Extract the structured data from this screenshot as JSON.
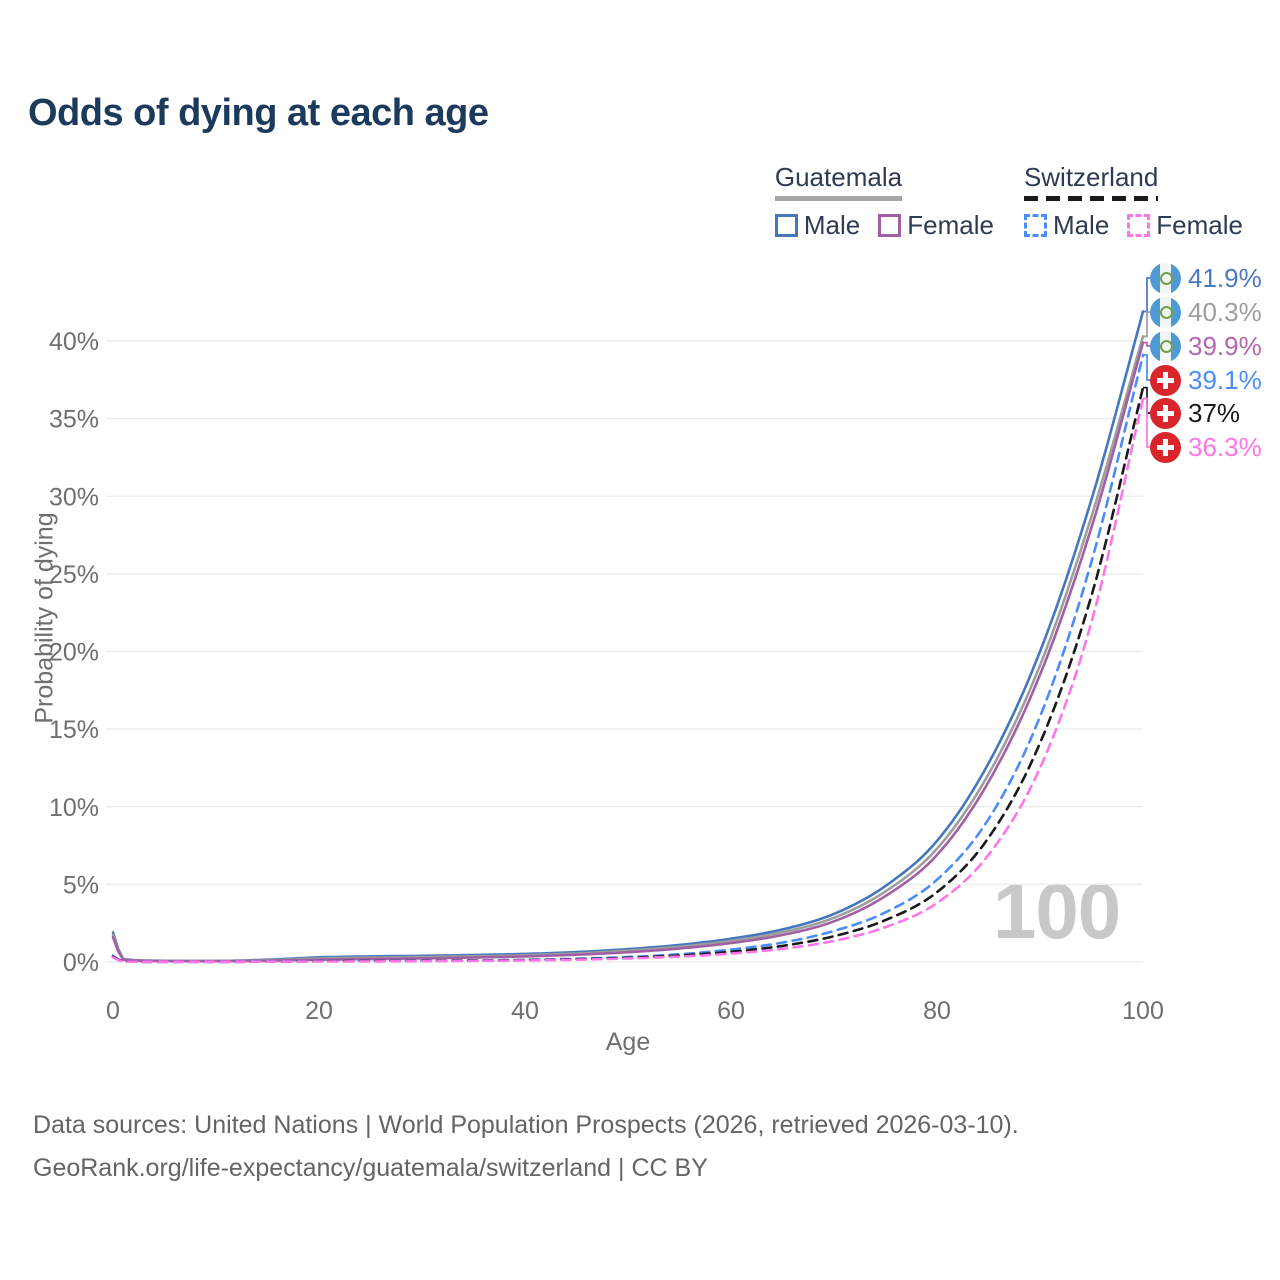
{
  "title": "Odds of dying at each age",
  "watermark": "100",
  "legend": {
    "groups": [
      {
        "country": "Guatemala",
        "line_style": "solid",
        "underline_color": "#a6a6a6",
        "items": [
          {
            "label": "Male",
            "color": "#4577bd"
          },
          {
            "label": "Female",
            "color": "#a25fa3"
          }
        ]
      },
      {
        "country": "Switzerland",
        "line_style": "dashed",
        "underline_color": "#1a1a1a",
        "items": [
          {
            "label": "Male",
            "color": "#4a8ef5"
          },
          {
            "label": "Female",
            "color": "#fb76e8"
          }
        ]
      }
    ]
  },
  "end_labels": [
    {
      "flag": "guatemala",
      "text": "41.9%",
      "value": 41.9,
      "color": "#4a79c2"
    },
    {
      "flag": "guatemala",
      "text": "40.3%",
      "value": 40.3,
      "color": "#9e9e9e"
    },
    {
      "flag": "guatemala",
      "text": "39.9%",
      "value": 39.9,
      "color": "#b365b0"
    },
    {
      "flag": "switzerland",
      "text": "39.1%",
      "value": 39.1,
      "color": "#4a8ef5"
    },
    {
      "flag": "switzerland",
      "text": "37%",
      "value": 37.0,
      "color": "#1a1a1a"
    },
    {
      "flag": "switzerland",
      "text": "36.3%",
      "value": 36.3,
      "color": "#fb76e8"
    }
  ],
  "footer": {
    "line1": "Data sources: United Nations | World Population Prospects (2026, retrieved 2026-03-10).",
    "line2": "GeoRank.org/life-expectancy/guatemala/switzerland | CC BY"
  },
  "chart_data": {
    "type": "line",
    "title": "Odds of dying at each age",
    "xlabel": "Age",
    "ylabel": "Probability of dying",
    "xlim": [
      0,
      100
    ],
    "ylim_percent": [
      0,
      44
    ],
    "grid": "horizontal",
    "legend_position": "top-right",
    "x_ticks": [
      0,
      20,
      40,
      60,
      80,
      100
    ],
    "y_tick_labels": [
      "0%",
      "5%",
      "10%",
      "15%",
      "20%",
      "25%",
      "30%",
      "35%",
      "40%"
    ],
    "y_tick_values": [
      0,
      5,
      10,
      15,
      20,
      25,
      30,
      35,
      40
    ],
    "ages": [
      0,
      1,
      5,
      10,
      15,
      20,
      25,
      30,
      35,
      40,
      45,
      50,
      55,
      60,
      65,
      70,
      75,
      80,
      85,
      90,
      95,
      100
    ],
    "unit": "percent probability of dying at each age",
    "series": [
      {
        "name": "Guatemala Male",
        "country": "Guatemala",
        "sex": "Male",
        "color": "#4577bd",
        "dash": false,
        "end_value": 41.9,
        "values": [
          1.9,
          0.18,
          0.08,
          0.07,
          0.15,
          0.3,
          0.36,
          0.4,
          0.45,
          0.52,
          0.64,
          0.83,
          1.1,
          1.5,
          2.1,
          3.1,
          4.9,
          7.8,
          12.8,
          20.0,
          29.8,
          41.9
        ]
      },
      {
        "name": "Guatemala Both sexes",
        "country": "Guatemala",
        "sex": "Both",
        "color": "#9e9e9e",
        "dash": false,
        "end_value": 40.3,
        "values": [
          1.75,
          0.16,
          0.07,
          0.06,
          0.11,
          0.23,
          0.28,
          0.32,
          0.37,
          0.44,
          0.55,
          0.73,
          0.98,
          1.36,
          1.92,
          2.85,
          4.55,
          7.3,
          12.1,
          19.1,
          28.7,
          40.3
        ]
      },
      {
        "name": "Guatemala Female",
        "country": "Guatemala",
        "sex": "Female",
        "color": "#a25fa3",
        "dash": false,
        "end_value": 39.9,
        "values": [
          1.6,
          0.14,
          0.06,
          0.05,
          0.08,
          0.15,
          0.19,
          0.23,
          0.29,
          0.36,
          0.47,
          0.63,
          0.87,
          1.22,
          1.74,
          2.62,
          4.25,
          6.9,
          11.6,
          18.5,
          28.0,
          39.9
        ]
      },
      {
        "name": "Switzerland Male",
        "country": "Switzerland",
        "sex": "Male",
        "color": "#4a8ef5",
        "dash": true,
        "end_value": 39.1,
        "values": [
          0.4,
          0.03,
          0.01,
          0.01,
          0.03,
          0.06,
          0.07,
          0.08,
          0.1,
          0.14,
          0.21,
          0.32,
          0.5,
          0.8,
          1.25,
          2.0,
          3.2,
          5.3,
          9.2,
          15.8,
          25.8,
          39.1
        ]
      },
      {
        "name": "Switzerland Both sexes",
        "country": "Switzerland",
        "sex": "Both",
        "color": "#1a1a1a",
        "dash": true,
        "end_value": 37.0,
        "values": [
          0.35,
          0.03,
          0.01,
          0.01,
          0.02,
          0.05,
          0.06,
          0.07,
          0.09,
          0.12,
          0.18,
          0.27,
          0.42,
          0.66,
          1.04,
          1.66,
          2.7,
          4.5,
          8.0,
          14.1,
          23.6,
          37.0
        ]
      },
      {
        "name": "Switzerland Female",
        "country": "Switzerland",
        "sex": "Female",
        "color": "#fb76e8",
        "dash": true,
        "end_value": 36.3,
        "values": [
          0.3,
          0.02,
          0.01,
          0.01,
          0.02,
          0.03,
          0.04,
          0.05,
          0.07,
          0.1,
          0.15,
          0.23,
          0.35,
          0.54,
          0.85,
          1.36,
          2.25,
          3.8,
          6.9,
          12.5,
          21.9,
          36.3
        ]
      }
    ]
  }
}
